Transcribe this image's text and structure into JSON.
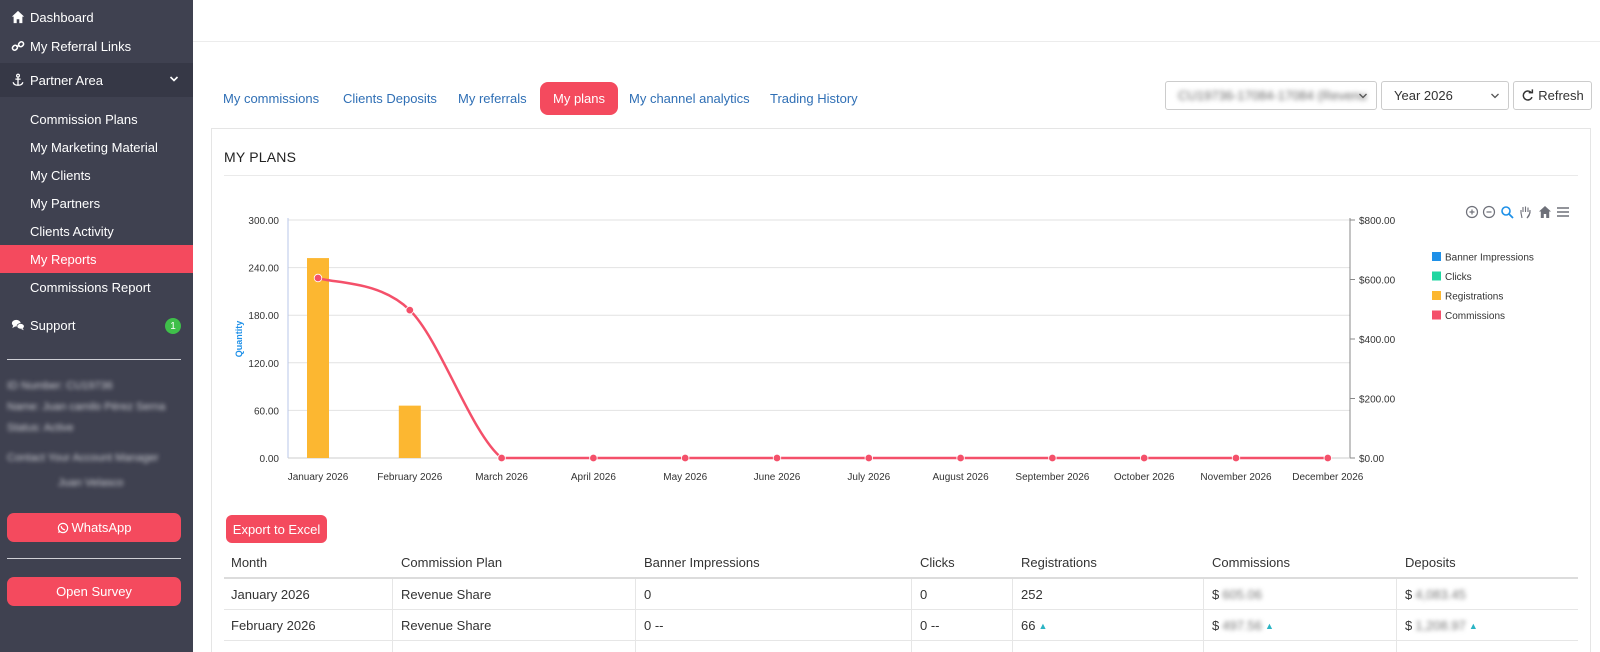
{
  "sidebar": {
    "items": [
      {
        "label": "Dashboard",
        "icon": "home-icon"
      },
      {
        "label": "My Referral Links",
        "icon": "link-icon"
      },
      {
        "label": "Partner Area",
        "icon": "anchor-icon"
      }
    ],
    "partner_sub": [
      "Commission Plans",
      "My Marketing Material",
      "My Clients",
      "My Partners",
      "Clients Activity",
      "My Reports",
      "Commissions Report"
    ],
    "active_sub": "My Reports",
    "support": {
      "label": "Support",
      "badge": "1"
    },
    "info": {
      "id": "ID Number: CU19736",
      "name": "Name: Juan camilo Pérez Serna",
      "status": "Status: Active",
      "manager_label": "Contact Your Account Manager",
      "manager_name": "Juan Velasco"
    },
    "whatsapp_label": "WhatsApp",
    "survey_label": "Open Survey"
  },
  "tabs": [
    {
      "label": "My commissions"
    },
    {
      "label": "Clients Deposits"
    },
    {
      "label": "My referrals"
    },
    {
      "label": "My plans",
      "active": true
    },
    {
      "label": "My channel analytics"
    },
    {
      "label": "Trading History"
    }
  ],
  "filters": {
    "account": "CU19736-17084-17084 (Revenu",
    "year": "Year 2026",
    "refresh_label": "Refresh"
  },
  "panel": {
    "title": "MY PLANS"
  },
  "colors": {
    "accent": "#f44a5e",
    "sidebar": "#3f4150",
    "link": "#2f6fb5"
  },
  "chart_data": {
    "type": "bar",
    "categories": [
      "January 2026",
      "February 2026",
      "March 2026",
      "April 2026",
      "May 2026",
      "June 2026",
      "July 2026",
      "August 2026",
      "September 2026",
      "October 2026",
      "November 2026",
      "December 2026"
    ],
    "ylabel": "Quantity",
    "ylim": [
      0,
      300
    ],
    "y_ticks": [
      "0.00",
      "60.00",
      "120.00",
      "180.00",
      "240.00",
      "300.00"
    ],
    "y2lim": [
      0,
      800
    ],
    "y2_ticks": [
      "$0.00",
      "$200.00",
      "$400.00",
      "$600.00",
      "$800.00"
    ],
    "legend_position": "right",
    "series": [
      {
        "name": "Banner Impressions",
        "type": "bar",
        "axis": "left",
        "color": "#1e90e8",
        "values": [
          0,
          0,
          0,
          0,
          0,
          0,
          0,
          0,
          0,
          0,
          0,
          0
        ]
      },
      {
        "name": "Clicks",
        "type": "bar",
        "axis": "left",
        "color": "#1fd6a0",
        "values": [
          0,
          0,
          0,
          0,
          0,
          0,
          0,
          0,
          0,
          0,
          0,
          0
        ]
      },
      {
        "name": "Registrations",
        "type": "bar",
        "axis": "left",
        "color": "#fcb731",
        "values": [
          252,
          66,
          0,
          0,
          0,
          0,
          0,
          0,
          0,
          0,
          0,
          0
        ]
      },
      {
        "name": "Commissions",
        "type": "line",
        "axis": "right",
        "color": "#f4506a",
        "values": [
          605,
          497,
          0,
          0,
          0,
          0,
          0,
          0,
          0,
          0,
          0,
          0
        ]
      }
    ],
    "toolbar_icons": [
      "zoom-in-icon",
      "zoom-out-icon",
      "magnify-icon",
      "pan-hand-icon",
      "reset-home-icon",
      "menu-icon"
    ]
  },
  "export_label": "Export to Excel",
  "table": {
    "columns": [
      "Month",
      "Commission Plan",
      "Banner Impressions",
      "Clicks",
      "Registrations",
      "Commissions",
      "Deposits"
    ],
    "rows": [
      {
        "month": "January 2026",
        "plan": "Revenue Share",
        "impressions": "0",
        "clicks": "0",
        "registrations": "252",
        "commissions": "605.06",
        "deposits": "4,083.45",
        "trend": false
      },
      {
        "month": "February 2026",
        "plan": "Revenue Share",
        "impressions": "0 --",
        "clicks": "0 --",
        "registrations": "66",
        "commissions": "497.56",
        "deposits": "1,208.97",
        "trend": true
      }
    ],
    "currency": "$"
  }
}
